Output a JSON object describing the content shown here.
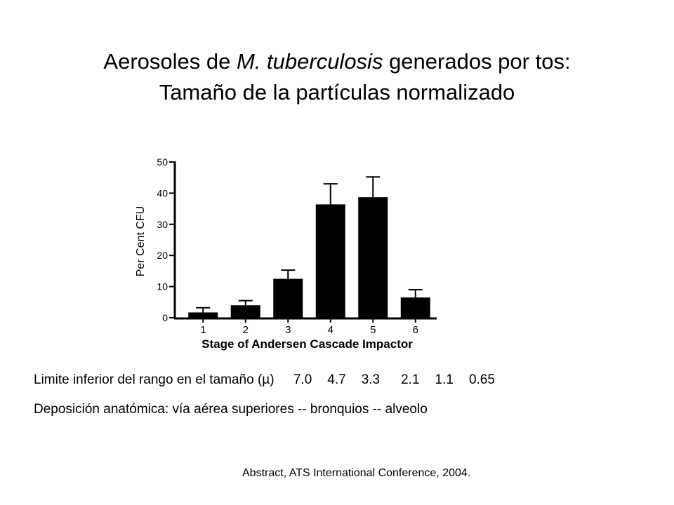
{
  "title": {
    "prefix": "Aerosoles de ",
    "italic": "M. tuberculosis",
    "suffix": " generados por tos:",
    "line2": "Tamaño de la partículas normalizado"
  },
  "chart_data": {
    "type": "bar",
    "categories": [
      "1",
      "2",
      "3",
      "4",
      "5",
      "6"
    ],
    "values": [
      1.7,
      4.0,
      12.5,
      36.4,
      38.7,
      6.5
    ],
    "error_upper": [
      3.2,
      5.5,
      15.3,
      43.0,
      45.2,
      9.0
    ],
    "xlabel": "Stage of Andersen Cascade Impactor",
    "ylabel": "Per Cent CFU",
    "ylim": [
      0,
      50
    ],
    "yticks": [
      0,
      10,
      20,
      30,
      40,
      50
    ],
    "bar_color": "#000000",
    "grid": false,
    "legend": "none"
  },
  "size_range": {
    "label": "Limite inferior del rango en el tamaño (µ)",
    "values": [
      "7.0",
      "4.7",
      "3.3",
      "2.1",
      "1.1",
      "0.65"
    ]
  },
  "deposition": {
    "text": "Deposición anatómica: vía aérea superiores --  bronquios -- alveolo"
  },
  "source": "Abstract, ATS International Conference, 2004."
}
